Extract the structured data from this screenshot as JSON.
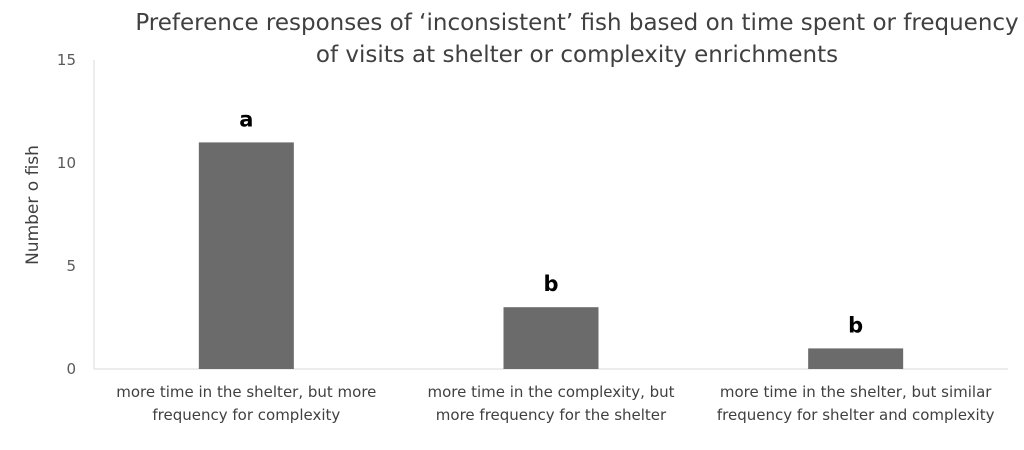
{
  "chart_data": {
    "type": "bar",
    "title": [
      "Preference responses of ‘inconsistent’ fish based on time spent or frequency",
      "of visits at shelter or complexity enrichments"
    ],
    "ylabel": "Number o fish",
    "xlabel": "",
    "ylim": [
      0,
      15
    ],
    "yticks": [
      "0",
      "5",
      "10",
      "15"
    ],
    "categories": [
      [
        "more time in the shelter, but more",
        "frequency for complexity"
      ],
      [
        "more time in the complexity, but",
        "more frequency for the shelter"
      ],
      [
        "more time in the shelter, but similar",
        "frequency for shelter and complexity"
      ]
    ],
    "values": [
      11,
      3,
      1
    ],
    "data_labels": [
      "a",
      "b",
      "b"
    ],
    "bar_color": "#6b6b6b",
    "grid": false,
    "legend": "none"
  }
}
